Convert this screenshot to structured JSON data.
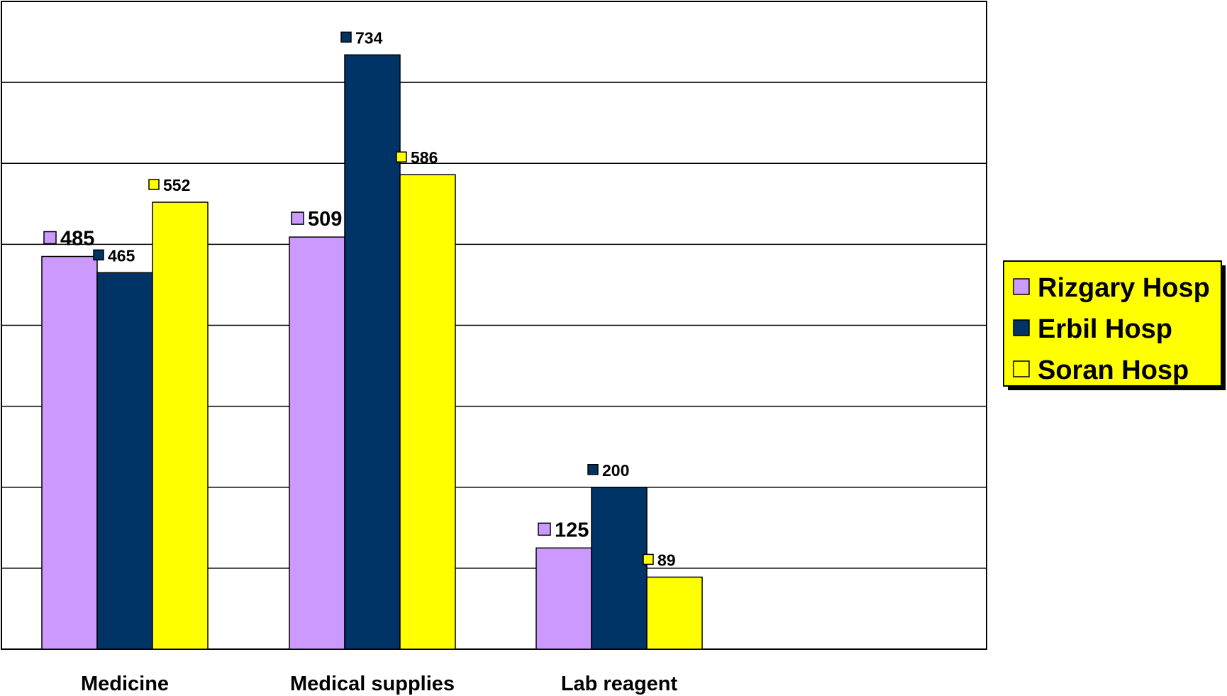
{
  "chart_data": {
    "type": "bar",
    "categories": [
      "Medicine",
      "Medical supplies",
      "Lab reagent"
    ],
    "series": [
      {
        "name": "Rizgary Hosp",
        "color": "#cc99ff",
        "values": [
          485,
          509,
          125
        ]
      },
      {
        "name": "Erbil Hosp",
        "color": "#003366",
        "values": [
          465,
          734,
          200
        ]
      },
      {
        "name": "Soran Hosp",
        "color": "#ffff00",
        "values": [
          552,
          586,
          89
        ]
      }
    ],
    "ylim": [
      0,
      800
    ],
    "grid": true,
    "legend": "right",
    "legend_background": "#ffff00"
  }
}
